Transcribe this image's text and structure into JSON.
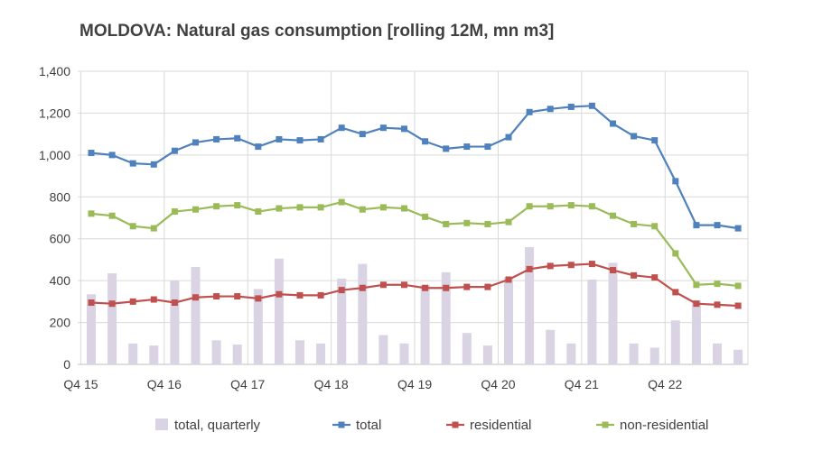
{
  "title": "MOLDOVA: Natural gas consumption [rolling 12M, mn m3]",
  "colors": {
    "bars": "#d9d3e3",
    "total": "#4f81bd",
    "residential": "#c0504d",
    "non_residential": "#9bbb59",
    "grid": "#d9d9d9",
    "axis_text": "#404040"
  },
  "chart_data": {
    "type": "line",
    "title": "MOLDOVA: Natural gas consumption [rolling 12M, mn m3]",
    "xlabel": "",
    "ylabel": "",
    "ylim": [
      0,
      1400
    ],
    "yticks": [
      "0",
      "200",
      "400",
      "600",
      "800",
      "1,000",
      "1,200",
      "1,400"
    ],
    "ytick_values": [
      0,
      200,
      400,
      600,
      800,
      1000,
      1200,
      1400
    ],
    "xtick_labels": [
      {
        "label": "Q4 15",
        "index": 0
      },
      {
        "label": "Q4 16",
        "index": 4
      },
      {
        "label": "Q4 17",
        "index": 8
      },
      {
        "label": "Q4 18",
        "index": 12
      },
      {
        "label": "Q4 19",
        "index": 16
      },
      {
        "label": "Q4 20",
        "index": 20
      },
      {
        "label": "Q4 21",
        "index": 24
      },
      {
        "label": "Q4 22",
        "index": 28
      }
    ],
    "categories": [
      "Q4 15",
      "Q1 16",
      "Q2 16",
      "Q3 16",
      "Q4 16",
      "Q1 17",
      "Q2 17",
      "Q3 17",
      "Q4 17",
      "Q1 18",
      "Q2 18",
      "Q3 18",
      "Q4 18",
      "Q1 19",
      "Q2 19",
      "Q3 19",
      "Q4 19",
      "Q1 20",
      "Q2 20",
      "Q3 20",
      "Q4 20",
      "Q1 21",
      "Q2 21",
      "Q3 21",
      "Q4 21",
      "Q1 22",
      "Q2 22",
      "Q3 22",
      "Q4 22",
      "Q1 23",
      "Q2 23",
      "Q3 23"
    ],
    "grid": "horizontal and vertical",
    "legend_position": "bottom",
    "series": [
      {
        "name": "total, quarterly",
        "kind": "bar",
        "values": [
          335,
          435,
          100,
          90,
          400,
          465,
          115,
          95,
          360,
          505,
          115,
          100,
          410,
          480,
          140,
          100,
          380,
          440,
          150,
          90,
          415,
          560,
          165,
          100,
          405,
          485,
          100,
          80,
          210,
          305,
          100,
          70
        ]
      },
      {
        "name": "total",
        "kind": "line",
        "values": [
          1010,
          1000,
          960,
          955,
          1020,
          1060,
          1075,
          1080,
          1040,
          1075,
          1070,
          1075,
          1130,
          1100,
          1130,
          1125,
          1065,
          1030,
          1040,
          1040,
          1085,
          1205,
          1220,
          1230,
          1235,
          1150,
          1090,
          1070,
          875,
          665,
          665,
          650
        ]
      },
      {
        "name": "residential",
        "kind": "line",
        "values": [
          295,
          290,
          300,
          310,
          295,
          320,
          325,
          325,
          315,
          335,
          330,
          330,
          355,
          365,
          380,
          380,
          365,
          365,
          370,
          370,
          405,
          455,
          470,
          475,
          480,
          450,
          425,
          415,
          345,
          290,
          285,
          280
        ]
      },
      {
        "name": "non-residential",
        "kind": "line",
        "values": [
          720,
          710,
          660,
          650,
          730,
          740,
          755,
          760,
          730,
          745,
          750,
          750,
          775,
          740,
          750,
          745,
          705,
          670,
          675,
          670,
          680,
          755,
          755,
          760,
          755,
          710,
          670,
          660,
          530,
          380,
          385,
          375
        ]
      }
    ]
  }
}
